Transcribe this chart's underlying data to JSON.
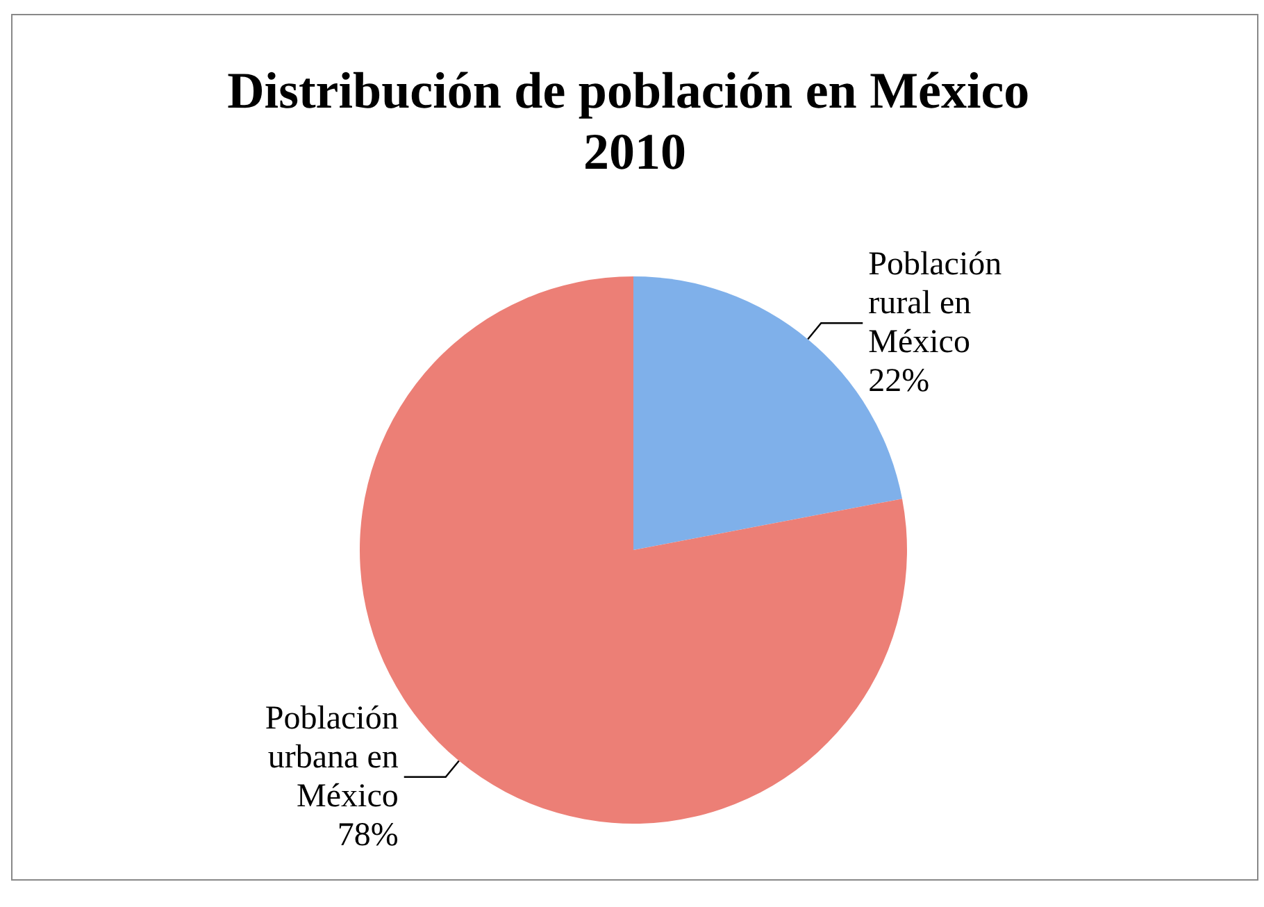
{
  "chart_data": {
    "type": "pie",
    "title": "Distribución de población en México 2010",
    "categories": [
      "Población rural en México",
      "Población urbana en México"
    ],
    "values": [
      22,
      78
    ],
    "value_labels": [
      "22%",
      "78%"
    ],
    "colors": [
      "#7fb0ea",
      "#ec7f76"
    ],
    "legend": false
  }
}
